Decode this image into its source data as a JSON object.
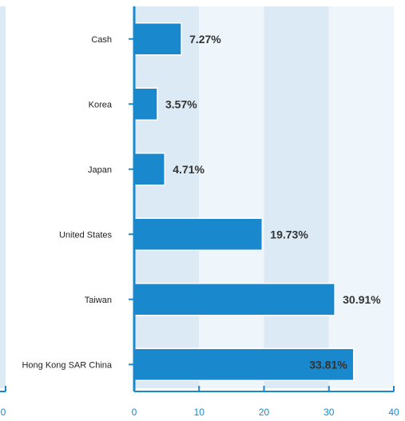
{
  "chart_data": {
    "type": "bar",
    "orientation": "horizontal",
    "categories": [
      "Cash",
      "Korea",
      "Japan",
      "United States",
      "Taiwan",
      "Hong Kong SAR China"
    ],
    "values": [
      7.27,
      3.57,
      4.71,
      19.73,
      30.91,
      33.81
    ],
    "data_labels": [
      "7.27%",
      "3.57%",
      "4.71%",
      "19.73%",
      "30.91%",
      "33.81%"
    ],
    "xlim": [
      0,
      40
    ],
    "xticks": [
      0,
      10,
      20,
      30,
      40
    ],
    "xtick_labels": [
      "0",
      "10",
      "20",
      "30",
      "40"
    ],
    "left_panel_tick_label": "0",
    "title": "",
    "xlabel": "",
    "ylabel": "",
    "grid": "alternating vertical bands",
    "legend": "none"
  },
  "colors": {
    "bar": "#1a88cc",
    "bar_stroke": "#ffffff",
    "axis": "#1a88cc",
    "band_dark": "#dceaf5",
    "band_light": "#eef5fb",
    "tick_text": "#1a88cc",
    "category_text": "#222222",
    "value_text": "#333333"
  }
}
